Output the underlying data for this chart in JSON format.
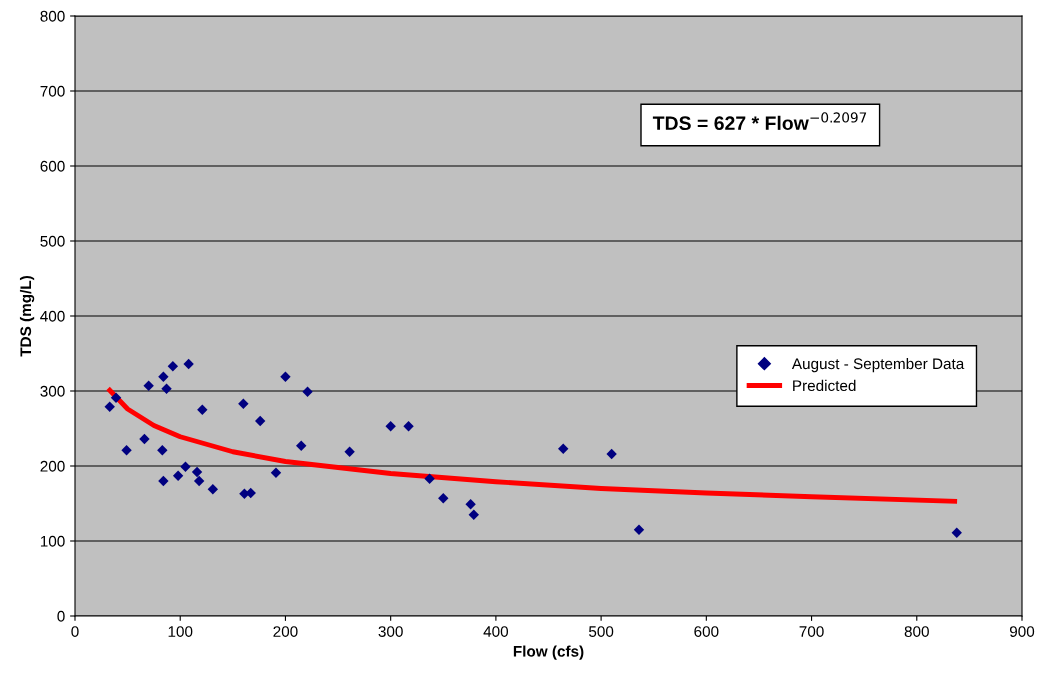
{
  "chart_data": {
    "type": "scatter",
    "xlabel": "Flow (cfs)",
    "ylabel": "TDS (mg/L)",
    "xlim": [
      0,
      900
    ],
    "xticks": [
      0,
      100,
      200,
      300,
      400,
      500,
      600,
      700,
      800,
      900
    ],
    "ylim": [
      0,
      800
    ],
    "yticks": [
      0,
      100,
      200,
      300,
      400,
      500,
      600,
      700,
      800
    ],
    "grid": "y",
    "legend": "right",
    "annotations": [
      "TDS = 627 * Flow$^{−0.2097}$"
    ],
    "series": [
      {
        "name": "August - September Data",
        "marker": "diamond",
        "color": "#000080",
        "x": [
          33,
          39,
          49,
          66,
          70,
          84,
          87,
          83,
          84,
          93,
          108,
          98,
          105,
          116,
          118,
          121,
          131,
          160,
          161,
          167,
          176,
          191,
          200,
          215,
          221,
          261,
          300,
          317,
          337,
          350,
          376,
          379,
          464,
          510,
          536,
          838
        ],
        "values": [
          279,
          291,
          221,
          236,
          307,
          319,
          303,
          221,
          180,
          333,
          336,
          187,
          199,
          192,
          180,
          275,
          169,
          283,
          163,
          164,
          260,
          191,
          319,
          227,
          299,
          219,
          253,
          253,
          183,
          157,
          149,
          135,
          223,
          216,
          115,
          111
        ]
      },
      {
        "name": "Predicted",
        "type": "line",
        "color": "#ff0000",
        "x": [
          33,
          50,
          75,
          100,
          150,
          200,
          300,
          400,
          500,
          600,
          700,
          836
        ],
        "values": [
          301,
          276,
          254,
          239,
          219,
          206,
          190,
          179,
          170,
          164,
          159,
          153
        ]
      }
    ]
  }
}
